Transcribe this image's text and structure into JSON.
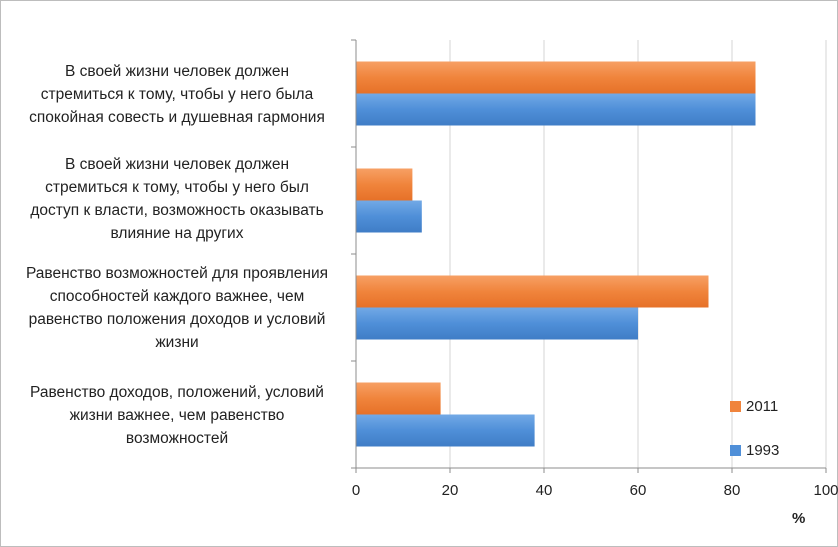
{
  "chart_data": {
    "type": "bar",
    "orientation": "horizontal",
    "categories": [
      "В своей жизни человек должен стремиться к тому, чтобы у него была спокойная совесть и душевная гармония",
      "В своей жизни человек должен стремиться к тому, чтобы у него был доступ к власти, возможность оказывать влияние на других",
      "Равенство возможностей для проявления способностей каждого важнее, чем равенство положения доходов и условий жизни",
      "Равенство доходов, положений, условий жизни важнее, чем равенство возможностей"
    ],
    "category_lines": [
      [
        "В своей жизни человек должен",
        "стремиться к тому, чтобы у него была",
        "спокойная совесть и душевная гармония"
      ],
      [
        "В своей жизни человек должен",
        "стремиться к тому, чтобы у него был",
        "доступ к власти, возможность оказывать",
        "влияние на других"
      ],
      [
        "Равенство возможностей для проявления",
        "способностей каждого важнее, чем",
        "равенство положения доходов и условий",
        "жизни"
      ],
      [
        "Равенство доходов, положений, условий",
        "жизни важнее, чем равенство",
        "возможностей"
      ]
    ],
    "series": [
      {
        "name": "2011",
        "color": "#f0843c",
        "values": [
          85,
          12,
          75,
          18
        ]
      },
      {
        "name": "1993",
        "color": "#4f8fd8",
        "values": [
          85,
          14,
          60,
          38
        ]
      }
    ],
    "xlim": [
      0,
      100
    ],
    "xticks": [
      "0",
      "20",
      "40",
      "60",
      "80",
      "100"
    ],
    "xlabel": "%",
    "grid": true,
    "legend_position": "right"
  }
}
